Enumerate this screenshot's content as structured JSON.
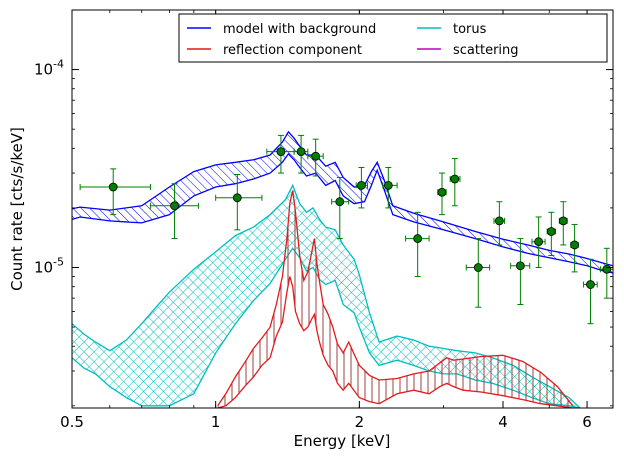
{
  "chart_data": {
    "type": "line",
    "xlabel": "Energy [keV]",
    "ylabel": "Count rate [cts/s/keV]",
    "xscale": "log",
    "yscale": "log",
    "xlim": [
      0.5,
      6.8
    ],
    "ylim": [
      1.95e-06,
      0.0002
    ],
    "x_ticks": [
      {
        "value": 0.5,
        "label": "0.5"
      },
      {
        "value": 1,
        "label": "1"
      },
      {
        "value": 2,
        "label": "2"
      },
      {
        "value": 4,
        "label": "4"
      },
      {
        "value": 6,
        "label": "6"
      }
    ],
    "y_ticks": [
      {
        "value": 1e-05,
        "base": "10",
        "exp": "-5"
      },
      {
        "value": 0.0001,
        "base": "10",
        "exp": "-4"
      }
    ],
    "legend": {
      "placement": "top-right",
      "columns": 2,
      "entries": [
        {
          "label": "model with background",
          "color": "#0000ff"
        },
        {
          "label": "torus",
          "color": "#00bfbf"
        },
        {
          "label": "reflection component",
          "color": "#e41a1c"
        },
        {
          "label": "scattering",
          "color": "#bf00bf"
        }
      ]
    },
    "bands": [
      {
        "name": "model with background",
        "color": "#0000ff",
        "hatch": "diagonal",
        "x": [
          0.5,
          0.52,
          0.6,
          0.7,
          0.8,
          0.9,
          1.0,
          1.1,
          1.2,
          1.3,
          1.38,
          1.42,
          1.46,
          1.5,
          1.55,
          1.62,
          1.7,
          1.78,
          1.85,
          1.95,
          2.05,
          2.12,
          2.18,
          2.25,
          2.35,
          2.6,
          3.0,
          3.5,
          4.0,
          4.5,
          5.0,
          5.5,
          6.0,
          6.5,
          6.8
        ],
        "low": [
          1.75e-05,
          1.8e-05,
          1.72e-05,
          1.68e-05,
          1.85e-05,
          2.3e-05,
          2.55e-05,
          2.65e-05,
          2.8e-05,
          3e-05,
          3.4e-05,
          3.75e-05,
          3.5e-05,
          3.2e-05,
          2.9e-05,
          3e-05,
          2.6e-05,
          2.75e-05,
          2.3e-05,
          2.1e-05,
          2.15e-05,
          2.6e-05,
          3.1e-05,
          2.5e-05,
          1.85e-05,
          1.7e-05,
          1.55e-05,
          1.4e-05,
          1.27e-05,
          1.18e-05,
          1.12e-05,
          1.07e-05,
          1.02e-05,
          9.6e-06,
          9.4e-06
        ],
        "high": [
          1.98e-05,
          2.02e-05,
          1.95e-05,
          2.05e-05,
          2.55e-05,
          3.05e-05,
          3.3e-05,
          3.4e-05,
          3.5e-05,
          3.7e-05,
          4.3e-05,
          4.85e-05,
          4.5e-05,
          4.1e-05,
          3.7e-05,
          3.7e-05,
          3.25e-05,
          3.4e-05,
          2.85e-05,
          2.55e-05,
          2.6e-05,
          3.05e-05,
          3.4e-05,
          2.8e-05,
          2.05e-05,
          1.88e-05,
          1.7e-05,
          1.52e-05,
          1.39e-05,
          1.3e-05,
          1.22e-05,
          1.17e-05,
          1.11e-05,
          1.05e-05,
          1.02e-05
        ]
      },
      {
        "name": "torus",
        "color": "#00bfbf",
        "hatch": "cross",
        "x": [
          0.5,
          0.53,
          0.56,
          0.6,
          0.65,
          0.7,
          0.75,
          0.8,
          0.9,
          1.0,
          1.1,
          1.2,
          1.3,
          1.4,
          1.45,
          1.5,
          1.55,
          1.6,
          1.65,
          1.7,
          1.78,
          1.85,
          1.95,
          2.0,
          2.1,
          2.2,
          2.4,
          2.6,
          2.8,
          3.0,
          3.2,
          3.5,
          3.8,
          4.2,
          4.6,
          5.0,
          5.5,
          5.8
        ],
        "low": [
          3.5e-06,
          3.1e-06,
          2.9e-06,
          2.5e-06,
          2.2e-06,
          2e-06,
          2e-06,
          2e-06,
          2.3e-06,
          3.7e-06,
          5.2e-06,
          6.8e-06,
          8.3e-06,
          1.1e-05,
          1.25e-05,
          1.12e-05,
          9.6e-06,
          1e-05,
          8.7e-06,
          8.2e-06,
          8.6e-06,
          6.5e-06,
          5.9e-06,
          5e-06,
          3.7e-06,
          3.2e-06,
          3.4e-06,
          3.2e-06,
          3e-06,
          2.9e-06,
          2.9e-06,
          2.7e-06,
          2.6e-06,
          2.4e-06,
          2.2e-06,
          2.05e-06,
          2e-06,
          1.95e-06
        ],
        "high": [
          5.2e-06,
          4.6e-06,
          4.2e-06,
          3.8e-06,
          4.3e-06,
          5.2e-06,
          6.3e-06,
          7.5e-06,
          9.8e-06,
          1.2e-05,
          1.45e-05,
          1.6e-05,
          1.85e-05,
          2.2e-05,
          2.6e-05,
          2.1e-05,
          1.9e-05,
          2e-05,
          1.75e-05,
          1.6e-05,
          1.55e-05,
          1.3e-05,
          1.1e-05,
          9.2e-06,
          5.9e-06,
          4.2e-06,
          4.5e-06,
          4.3e-06,
          4e-06,
          3.9e-06,
          3.8e-06,
          3.7e-06,
          3.5e-06,
          3.2e-06,
          2.8e-06,
          2.5e-06,
          2.2e-06,
          1.95e-06
        ]
      },
      {
        "name": "reflection component",
        "color": "#e41a1c",
        "hatch": "vertical",
        "x": [
          1.01,
          1.05,
          1.1,
          1.15,
          1.2,
          1.25,
          1.3,
          1.34,
          1.38,
          1.41,
          1.43,
          1.45,
          1.47,
          1.5,
          1.53,
          1.56,
          1.59,
          1.61,
          1.63,
          1.65,
          1.68,
          1.72,
          1.76,
          1.8,
          1.85,
          1.9,
          2.0,
          2.1,
          2.2,
          2.4,
          2.6,
          2.8,
          2.95,
          3.05,
          3.15,
          3.3,
          3.6,
          4.0,
          4.4,
          4.8,
          5.2,
          5.6
        ],
        "low": [
          1.95e-06,
          2e-06,
          2.2e-06,
          2.5e-06,
          2.8e-06,
          3.2e-06,
          3.5e-06,
          4.5e-06,
          5.3e-06,
          7.5e-06,
          9e-06,
          8e-06,
          6e-06,
          5.2e-06,
          4.8e-06,
          5e-06,
          5.5e-06,
          5.8e-06,
          4.8e-06,
          4.2e-06,
          3.6e-06,
          3.2e-06,
          3e-06,
          2.6e-06,
          2.4e-06,
          2.6e-06,
          2.2e-06,
          2.1e-06,
          2.05e-06,
          2.3e-06,
          2.4e-06,
          2.3e-06,
          2.5e-06,
          2.6e-06,
          2.5e-06,
          2.4e-06,
          2.35e-06,
          2.25e-06,
          2.15e-06,
          2.05e-06,
          2e-06,
          1.95e-06
        ],
        "high": [
          2e-06,
          2.3e-06,
          2.8e-06,
          3.3e-06,
          3.9e-06,
          4.4e-06,
          5e-06,
          6.5e-06,
          9e-06,
          1.4e-05,
          2.1e-05,
          2.45e-05,
          1.9e-05,
          1.15e-05,
          8.6e-06,
          9.5e-06,
          1.2e-05,
          1.4e-05,
          1.05e-05,
          8.5e-06,
          6.5e-06,
          5.8e-06,
          5e-06,
          4.1e-06,
          3.7e-06,
          4.2e-06,
          3.2e-06,
          2.85e-06,
          2.7e-06,
          2.75e-06,
          2.9e-06,
          3e-06,
          3.3e-06,
          3.5e-06,
          3.4e-06,
          3.45e-06,
          3.55e-06,
          3.6e-06,
          3.35e-06,
          2.95e-06,
          2.5e-06,
          2e-06
        ]
      }
    ],
    "data_points": [
      {
        "x": 0.61,
        "y": 2.55e-05,
        "xlo": 0.52,
        "xhi": 0.73,
        "ylo": 1.85e-05,
        "yhi": 3.15e-05
      },
      {
        "x": 0.82,
        "y": 2.05e-05,
        "xlo": 0.73,
        "xhi": 0.92,
        "ylo": 1.4e-05,
        "yhi": 2.65e-05
      },
      {
        "x": 1.11,
        "y": 2.25e-05,
        "xlo": 1.0,
        "xhi": 1.25,
        "ylo": 1.55e-05,
        "yhi": 2.95e-05
      },
      {
        "x": 1.37,
        "y": 3.85e-05,
        "xlo": 1.28,
        "xhi": 1.46,
        "ylo": 3e-05,
        "yhi": 4.65e-05
      },
      {
        "x": 1.51,
        "y": 3.85e-05,
        "xlo": 1.46,
        "xhi": 1.56,
        "ylo": 3e-05,
        "yhi": 4.65e-05
      },
      {
        "x": 1.62,
        "y": 3.65e-05,
        "xlo": 1.56,
        "xhi": 1.68,
        "ylo": 2.9e-05,
        "yhi": 4.45e-05
      },
      {
        "x": 1.82,
        "y": 2.15e-05,
        "xlo": 1.75,
        "xhi": 1.9,
        "ylo": 1.4e-05,
        "yhi": 2.85e-05
      },
      {
        "x": 2.02,
        "y": 2.6e-05,
        "xlo": 1.97,
        "xhi": 2.08,
        "ylo": 2e-05,
        "yhi": 3.2e-05
      },
      {
        "x": 2.3,
        "y": 2.6e-05,
        "xlo": 2.24,
        "xhi": 2.4,
        "ylo": 2e-05,
        "yhi": 3.2e-05
      },
      {
        "x": 2.65,
        "y": 1.4e-05,
        "xlo": 2.5,
        "xhi": 2.8,
        "ylo": 9e-06,
        "yhi": 1.9e-05
      },
      {
        "x": 2.98,
        "y": 2.4e-05,
        "xlo": 2.92,
        "xhi": 3.04,
        "ylo": 1.85e-05,
        "yhi": 3e-05
      },
      {
        "x": 3.17,
        "y": 2.8e-05,
        "xlo": 3.1,
        "xhi": 3.25,
        "ylo": 2.05e-05,
        "yhi": 3.55e-05
      },
      {
        "x": 3.55,
        "y": 1e-05,
        "xlo": 3.35,
        "xhi": 3.75,
        "ylo": 6.3e-06,
        "yhi": 1.4e-05
      },
      {
        "x": 3.93,
        "y": 1.72e-05,
        "xlo": 3.83,
        "xhi": 4.03,
        "ylo": 1.3e-05,
        "yhi": 2.15e-05
      },
      {
        "x": 4.35,
        "y": 1.02e-05,
        "xlo": 4.15,
        "xhi": 4.55,
        "ylo": 6.5e-06,
        "yhi": 1.4e-05
      },
      {
        "x": 4.75,
        "y": 1.35e-05,
        "xlo": 4.6,
        "xhi": 4.9,
        "ylo": 1e-05,
        "yhi": 1.8e-05
      },
      {
        "x": 5.05,
        "y": 1.52e-05,
        "xlo": 4.95,
        "xhi": 5.15,
        "ylo": 1.15e-05,
        "yhi": 1.9e-05
      },
      {
        "x": 5.35,
        "y": 1.72e-05,
        "xlo": 5.25,
        "xhi": 5.45,
        "ylo": 1.3e-05,
        "yhi": 2.15e-05
      },
      {
        "x": 5.65,
        "y": 1.3e-05,
        "xlo": 5.55,
        "xhi": 5.75,
        "ylo": 9.5e-06,
        "yhi": 1.65e-05
      },
      {
        "x": 6.1,
        "y": 8.2e-06,
        "xlo": 5.9,
        "xhi": 6.3,
        "ylo": 5.2e-06,
        "yhi": 1.1e-05
      },
      {
        "x": 6.6,
        "y": 9.8e-06,
        "xlo": 6.4,
        "xhi": 6.8,
        "ylo": 7e-06,
        "yhi": 1.25e-05
      }
    ],
    "data_point_color": "#007f00",
    "grid": false
  }
}
